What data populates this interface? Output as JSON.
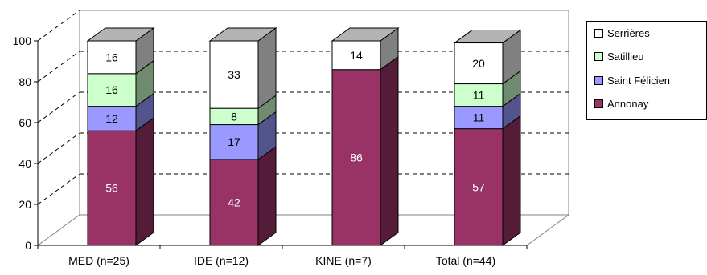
{
  "chart_data": {
    "type": "bar",
    "stacked": true,
    "three_d": true,
    "categories": [
      "MED (n=25)",
      "IDE (n=12)",
      "KINE (n=7)",
      "Total (n=44)"
    ],
    "series": [
      {
        "name": "Annonay",
        "values": [
          56,
          42,
          86,
          57
        ]
      },
      {
        "name": "Saint Félicien",
        "values": [
          12,
          17,
          0,
          11
        ]
      },
      {
        "name": "Satillieu",
        "values": [
          16,
          8,
          0,
          11
        ]
      },
      {
        "name": "Serrières",
        "values": [
          16,
          33,
          14,
          20
        ]
      }
    ],
    "ylim": [
      0,
      100
    ],
    "yticks": [
      "0",
      "20",
      "40",
      "60",
      "80",
      "100"
    ],
    "grid": true,
    "legend_position": "right",
    "title": "",
    "xlabel": "",
    "ylabel": ""
  },
  "colors": {
    "Annonay": "#993366",
    "Saint Félicien": "#9999ff",
    "Satillieu": "#ccffcc",
    "Serrières": "#ffffff",
    "side": "#808080",
    "wall": "#ffffff",
    "axis": "#000000"
  },
  "legend": {
    "items": [
      "Serrières",
      "Satillieu",
      "Saint Félicien",
      "Annonay"
    ]
  }
}
